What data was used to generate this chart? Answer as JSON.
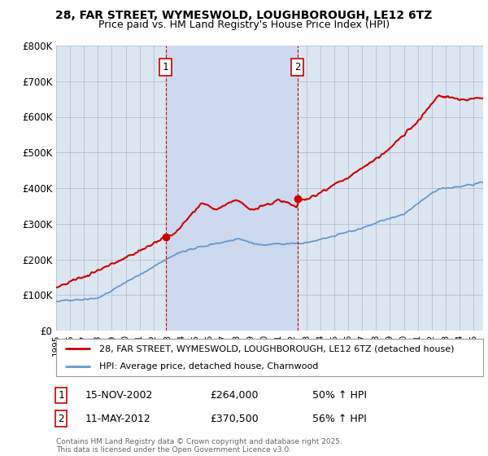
{
  "title1": "28, FAR STREET, WYMESWOLD, LOUGHBOROUGH, LE12 6TZ",
  "title2": "Price paid vs. HM Land Registry's House Price Index (HPI)",
  "ylabel_ticks": [
    "£0",
    "£100K",
    "£200K",
    "£300K",
    "£400K",
    "£500K",
    "£600K",
    "£700K",
    "£800K"
  ],
  "ylim": [
    0,
    800000
  ],
  "xlim_start": 1995.0,
  "xlim_end": 2025.7,
  "sale1_date": 2002.87,
  "sale1_price": 264000,
  "sale1_label": "1",
  "sale2_date": 2012.36,
  "sale2_price": 370500,
  "sale2_label": "2",
  "legend_line1": "28, FAR STREET, WYMESWOLD, LOUGHBOROUGH, LE12 6TZ (detached house)",
  "legend_line2": "HPI: Average price, detached house, Charnwood",
  "annotation1_date": "15-NOV-2002",
  "annotation1_price": "£264,000",
  "annotation1_pct": "50% ↑ HPI",
  "annotation2_date": "11-MAY-2012",
  "annotation2_price": "£370,500",
  "annotation2_pct": "56% ↑ HPI",
  "footnote": "Contains HM Land Registry data © Crown copyright and database right 2025.\nThis data is licensed under the Open Government Licence v3.0.",
  "red_color": "#cc0000",
  "blue_color": "#6699cc",
  "shade_color": "#ccd9ee",
  "bg_color": "#dce6f1",
  "plot_bg": "#ffffff",
  "vline_color": "#cc0000",
  "grid_color": "#b0b8c8"
}
